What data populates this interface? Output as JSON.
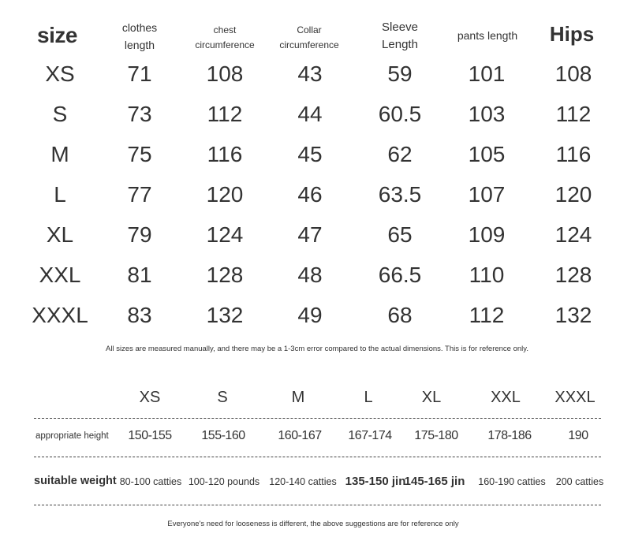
{
  "size_table": {
    "headers": [
      "size",
      "clothes\nlength",
      "chest\ncircumference",
      "Collar\ncircumference",
      "Sleeve\nLength",
      "pants length",
      "Hips"
    ],
    "rows": [
      [
        "XS",
        "71",
        "108",
        "43",
        "59",
        "101",
        "108"
      ],
      [
        "S",
        "73",
        "112",
        "44",
        "60.5",
        "103",
        "112"
      ],
      [
        "M",
        "75",
        "116",
        "45",
        "62",
        "105",
        "116"
      ],
      [
        "L",
        "77",
        "120",
        "46",
        "63.5",
        "107",
        "120"
      ],
      [
        "XL",
        "79",
        "124",
        "47",
        "65",
        "109",
        "124"
      ],
      [
        "XXL",
        "81",
        "128",
        "48",
        "66.5",
        "110",
        "128"
      ],
      [
        "XXXL",
        "83",
        "132",
        "49",
        "68",
        "112",
        "132"
      ]
    ],
    "note": "All sizes are measured manually, and there may be a 1-3cm error compared to the actual dimensions. This is for reference only."
  },
  "fit_table": {
    "sizes": [
      "XS",
      "S",
      "M",
      "L",
      "XL",
      "XXL",
      "XXXL"
    ],
    "height_label": "appropriate height",
    "heights": [
      "150-155",
      "155-160",
      "160-167",
      "167-174",
      "175-180",
      "178-186",
      "190"
    ],
    "weight_label": "suitable weight",
    "weights": [
      "80-100 catties",
      "100-120 pounds",
      "120-140 catties",
      "135-150 jin",
      "145-165 jin",
      "160-190 catties",
      "200 catties"
    ],
    "note": "Everyone's need for looseness is different, the above suggestions are for reference only"
  }
}
